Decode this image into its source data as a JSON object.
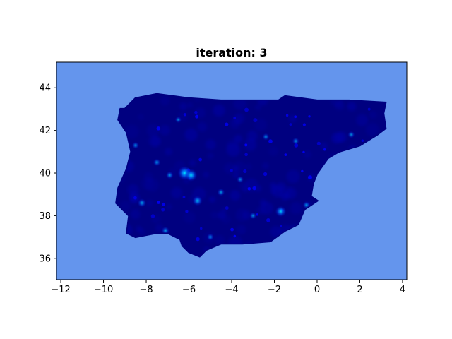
{
  "figure": {
    "title": "iteration: 3"
  },
  "colors": {
    "sea": "#6495ed",
    "land": "#000080",
    "hotspot_mid": "#0000ff",
    "hotspot_peak": "#00bfff",
    "axis": "#000000"
  },
  "axes": {
    "xlim": [
      -12.2,
      4.2
    ],
    "ylim": [
      35.0,
      45.2
    ],
    "xticks": [
      -12,
      -10,
      -8,
      -6,
      -4,
      -2,
      0,
      2,
      4
    ],
    "yticks": [
      36,
      38,
      40,
      42,
      44
    ],
    "xtick_labels": [
      "−12",
      "−10",
      "−8",
      "−6",
      "−4",
      "−2",
      "0",
      "2",
      "4"
    ],
    "ytick_labels": [
      "36",
      "38",
      "40",
      "42",
      "44"
    ]
  },
  "chart_data": {
    "type": "heatmap",
    "title": "iteration: 3",
    "xlabel": "",
    "ylabel": "",
    "xlim": [
      -12.2,
      4.2
    ],
    "ylim": [
      35.0,
      45.2
    ],
    "region_outline": [
      [
        -9.0,
        43.0
      ],
      [
        -8.5,
        43.5
      ],
      [
        -7.5,
        43.7
      ],
      [
        -6.0,
        43.5
      ],
      [
        -4.5,
        43.4
      ],
      [
        -3.5,
        43.4
      ],
      [
        -1.8,
        43.4
      ],
      [
        -1.5,
        43.6
      ],
      [
        0.0,
        43.4
      ],
      [
        1.5,
        43.4
      ],
      [
        3.2,
        43.3
      ],
      [
        3.1,
        42.8
      ],
      [
        3.2,
        42.1
      ],
      [
        2.8,
        41.8
      ],
      [
        2.0,
        41.3
      ],
      [
        1.0,
        41.0
      ],
      [
        0.5,
        40.7
      ],
      [
        0.0,
        40.0
      ],
      [
        -0.2,
        39.5
      ],
      [
        -0.3,
        38.9
      ],
      [
        0.0,
        38.7
      ],
      [
        -0.6,
        38.3
      ],
      [
        -0.9,
        37.6
      ],
      [
        -1.5,
        37.3
      ],
      [
        -2.2,
        36.8
      ],
      [
        -3.5,
        36.7
      ],
      [
        -4.5,
        36.7
      ],
      [
        -5.2,
        36.4
      ],
      [
        -5.5,
        36.1
      ],
      [
        -6.0,
        36.3
      ],
      [
        -6.3,
        36.6
      ],
      [
        -6.4,
        36.9
      ],
      [
        -7.0,
        37.2
      ],
      [
        -7.5,
        37.2
      ],
      [
        -8.5,
        37.0
      ],
      [
        -8.9,
        37.2
      ],
      [
        -8.8,
        38.0
      ],
      [
        -9.4,
        38.6
      ],
      [
        -9.3,
        39.3
      ],
      [
        -8.9,
        40.2
      ],
      [
        -8.7,
        41.0
      ],
      [
        -8.9,
        41.9
      ],
      [
        -9.3,
        42.5
      ],
      [
        -9.2,
        43.0
      ]
    ],
    "hotspots": [
      {
        "lon": -6.2,
        "lat": 40.0,
        "intensity": 1.0
      },
      {
        "lon": -5.9,
        "lat": 39.9,
        "intensity": 0.85
      },
      {
        "lon": -5.6,
        "lat": 38.7,
        "intensity": 0.6
      },
      {
        "lon": -1.7,
        "lat": 38.2,
        "intensity": 0.7
      },
      {
        "lon": -8.2,
        "lat": 38.6,
        "intensity": 0.45
      },
      {
        "lon": -7.5,
        "lat": 40.5,
        "intensity": 0.35
      },
      {
        "lon": -6.9,
        "lat": 39.9,
        "intensity": 0.35
      },
      {
        "lon": -4.5,
        "lat": 39.1,
        "intensity": 0.35
      },
      {
        "lon": -7.1,
        "lat": 37.3,
        "intensity": 0.4
      },
      {
        "lon": -3.6,
        "lat": 39.7,
        "intensity": 0.3
      },
      {
        "lon": -2.4,
        "lat": 41.7,
        "intensity": 0.3
      },
      {
        "lon": -1.0,
        "lat": 41.5,
        "intensity": 0.3
      },
      {
        "lon": 1.6,
        "lat": 41.8,
        "intensity": 0.3
      },
      {
        "lon": -8.5,
        "lat": 41.3,
        "intensity": 0.3
      },
      {
        "lon": -0.5,
        "lat": 38.5,
        "intensity": 0.35
      },
      {
        "lon": -5.0,
        "lat": 37.0,
        "intensity": 0.3
      },
      {
        "lon": -3.0,
        "lat": 38.0,
        "intensity": 0.3
      },
      {
        "lon": -6.5,
        "lat": 42.5,
        "intensity": 0.25
      }
    ]
  }
}
